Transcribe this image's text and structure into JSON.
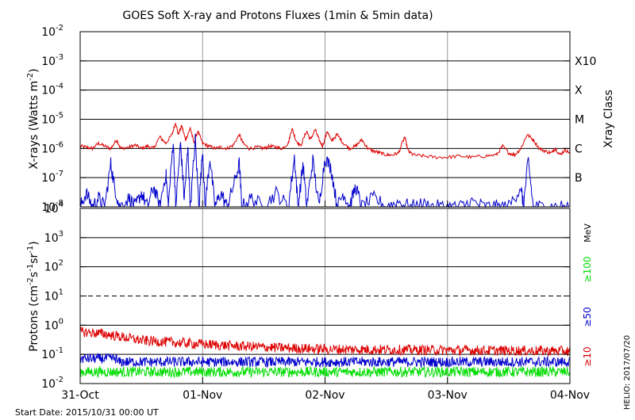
{
  "chart_data": [
    {
      "type": "line",
      "title": "GOES Soft X-ray and Protons Fluxes   (1min & 5min data)",
      "ylabel_base": "X-rays (Watts m",
      "ylabel_exp": "-2",
      "ylabel_end": ")",
      "y_scale": "log",
      "ylim": [
        1e-08,
        0.01
      ],
      "y_ticks": [
        {
          "base": "10",
          "exp": "-8"
        },
        {
          "base": "10",
          "exp": "-7"
        },
        {
          "base": "10",
          "exp": "-6"
        },
        {
          "base": "10",
          "exp": "-5"
        },
        {
          "base": "10",
          "exp": "-4"
        },
        {
          "base": "10",
          "exp": "-3"
        },
        {
          "base": "10",
          "exp": "-2"
        }
      ],
      "right_axis_label": "Xray Class",
      "classes": [
        {
          "label": "B",
          "level": 1e-07
        },
        {
          "label": "C",
          "level": 1e-06
        },
        {
          "label": "M",
          "level": 1e-05
        },
        {
          "label": "X",
          "level": 0.0001
        },
        {
          "label": "X10",
          "level": 0.001
        }
      ],
      "series": [
        {
          "color": "#dd0000",
          "points": [
            [
              0.0,
              1.2e-06
            ],
            [
              0.05,
              1.1e-06
            ],
            [
              0.1,
              1e-06
            ],
            [
              0.15,
              1.5e-06
            ],
            [
              0.2,
              1.2e-06
            ],
            [
              0.25,
              1e-06
            ],
            [
              0.3,
              2e-06
            ],
            [
              0.33,
              1e-06
            ],
            [
              0.4,
              1.1e-06
            ],
            [
              0.45,
              1.3e-06
            ],
            [
              0.5,
              1e-06
            ],
            [
              0.55,
              1.2e-06
            ],
            [
              0.6,
              1e-06
            ],
            [
              0.65,
              2.5e-06
            ],
            [
              0.7,
              1.5e-06
            ],
            [
              0.75,
              3e-06
            ],
            [
              0.78,
              8e-06
            ],
            [
              0.8,
              3e-06
            ],
            [
              0.83,
              6e-06
            ],
            [
              0.86,
              2e-06
            ],
            [
              0.9,
              5e-06
            ],
            [
              0.93,
              1.5e-06
            ],
            [
              0.96,
              4e-06
            ],
            [
              1.0,
              1.5e-06
            ],
            [
              1.05,
              1.2e-06
            ],
            [
              1.1,
              1e-06
            ],
            [
              1.15,
              1.1e-06
            ],
            [
              1.2,
              1e-06
            ],
            [
              1.25,
              1.3e-06
            ],
            [
              1.3,
              3e-06
            ],
            [
              1.33,
              1.5e-06
            ],
            [
              1.38,
              1e-06
            ],
            [
              1.45,
              1.1e-06
            ],
            [
              1.5,
              1e-06
            ],
            [
              1.55,
              1.2e-06
            ],
            [
              1.6,
              1.1e-06
            ],
            [
              1.65,
              1e-06
            ],
            [
              1.7,
              1.5e-06
            ],
            [
              1.73,
              5e-06
            ],
            [
              1.76,
              2e-06
            ],
            [
              1.8,
              1.2e-06
            ],
            [
              1.85,
              4e-06
            ],
            [
              1.88,
              2e-06
            ],
            [
              1.92,
              4.5e-06
            ],
            [
              1.95,
              2e-06
            ],
            [
              1.98,
              1.2e-06
            ],
            [
              2.02,
              4e-06
            ],
            [
              2.05,
              1.8e-06
            ],
            [
              2.1,
              3e-06
            ],
            [
              2.15,
              1.5e-06
            ],
            [
              2.2,
              1e-06
            ],
            [
              2.25,
              1.2e-06
            ],
            [
              2.3,
              2e-06
            ],
            [
              2.35,
              1e-06
            ],
            [
              2.4,
              8e-07
            ],
            [
              2.45,
              7e-07
            ],
            [
              2.5,
              6e-07
            ],
            [
              2.55,
              6e-07
            ],
            [
              2.6,
              7e-07
            ],
            [
              2.65,
              2.5e-06
            ],
            [
              2.68,
              8e-07
            ],
            [
              2.72,
              6e-07
            ],
            [
              2.8,
              5.5e-07
            ],
            [
              2.9,
              5e-07
            ],
            [
              3.0,
              5e-07
            ],
            [
              3.1,
              5.5e-07
            ],
            [
              3.2,
              5e-07
            ],
            [
              3.3,
              5.5e-07
            ],
            [
              3.4,
              6e-07
            ],
            [
              3.45,
              1.2e-06
            ],
            [
              3.5,
              7e-07
            ],
            [
              3.55,
              6e-07
            ],
            [
              3.6,
              1e-06
            ],
            [
              3.65,
              3e-06
            ],
            [
              3.7,
              2e-06
            ],
            [
              3.75,
              1e-06
            ],
            [
              3.8,
              8e-07
            ],
            [
              3.85,
              7e-07
            ],
            [
              3.88,
              1e-06
            ],
            [
              3.92,
              6e-07
            ],
            [
              3.96,
              9e-07
            ],
            [
              4.0,
              7e-07
            ]
          ]
        },
        {
          "color": "#0000cc",
          "points": [
            [
              0.0,
              1e-08
            ],
            [
              0.05,
              3e-08
            ],
            [
              0.1,
              1e-08
            ],
            [
              0.15,
              2e-08
            ],
            [
              0.2,
              1e-08
            ],
            [
              0.25,
              3e-07
            ],
            [
              0.28,
              5e-08
            ],
            [
              0.32,
              1e-08
            ],
            [
              0.4,
              2e-08
            ],
            [
              0.45,
              1e-08
            ],
            [
              0.5,
              3e-08
            ],
            [
              0.55,
              1e-08
            ],
            [
              0.6,
              5e-08
            ],
            [
              0.65,
              1e-08
            ],
            [
              0.7,
              1.5e-07
            ],
            [
              0.72,
              1e-08
            ],
            [
              0.76,
              2e-06
            ],
            [
              0.78,
              1e-08
            ],
            [
              0.82,
              1.5e-06
            ],
            [
              0.85,
              2e-08
            ],
            [
              0.88,
              1e-06
            ],
            [
              0.9,
              1e-08
            ],
            [
              0.94,
              2e-06
            ],
            [
              0.97,
              1e-08
            ],
            [
              1.0,
              1e-06
            ],
            [
              1.02,
              1e-08
            ],
            [
              1.06,
              5e-07
            ],
            [
              1.1,
              1e-08
            ],
            [
              1.15,
              3e-08
            ],
            [
              1.2,
              1e-08
            ],
            [
              1.25,
              5e-08
            ],
            [
              1.3,
              3e-07
            ],
            [
              1.32,
              1e-08
            ],
            [
              1.4,
              2e-08
            ],
            [
              1.5,
              1e-08
            ],
            [
              1.6,
              3e-08
            ],
            [
              1.7,
              1e-08
            ],
            [
              1.75,
              5e-07
            ],
            [
              1.78,
              1e-08
            ],
            [
              1.82,
              3e-07
            ],
            [
              1.85,
              1e-08
            ],
            [
              1.9,
              4e-07
            ],
            [
              1.95,
              1e-08
            ],
            [
              2.0,
              5e-07
            ],
            [
              2.05,
              2e-07
            ],
            [
              2.1,
              1e-08
            ],
            [
              2.15,
              3e-08
            ],
            [
              2.2,
              1e-08
            ],
            [
              2.25,
              5e-08
            ],
            [
              2.3,
              1e-08
            ],
            [
              2.4,
              2e-08
            ],
            [
              2.5,
              1e-08
            ],
            [
              2.6,
              1.5e-08
            ],
            [
              2.7,
              1e-08
            ],
            [
              2.8,
              1.2e-08
            ],
            [
              2.9,
              1e-08
            ],
            [
              3.0,
              1e-08
            ],
            [
              3.1,
              1e-08
            ],
            [
              3.2,
              1.5e-08
            ],
            [
              3.3,
              1e-08
            ],
            [
              3.4,
              1e-08
            ],
            [
              3.5,
              1e-08
            ],
            [
              3.6,
              5e-08
            ],
            [
              3.62,
              1e-08
            ],
            [
              3.66,
              4e-07
            ],
            [
              3.7,
              1e-08
            ],
            [
              3.8,
              1e-08
            ],
            [
              3.9,
              1e-08
            ],
            [
              4.0,
              1e-08
            ]
          ]
        }
      ]
    },
    {
      "type": "line",
      "ylabel_base": "Protons (cm",
      "ylabel_exp1": "-2",
      "ylabel_mid": "s",
      "ylabel_exp2": "-1",
      "ylabel_mid2": "sr",
      "ylabel_exp3": "-1",
      "ylabel_end": ")",
      "y_scale": "log",
      "ylim": [
        0.01,
        10000.0
      ],
      "y_ticks": [
        {
          "base": "10",
          "exp": "-2"
        },
        {
          "base": "10",
          "exp": "-1"
        },
        {
          "base": "10",
          "exp": "0"
        },
        {
          "base": "10",
          "exp": "1"
        },
        {
          "base": "10",
          "exp": "2"
        },
        {
          "base": "10",
          "exp": "3"
        },
        {
          "base": "10",
          "exp": "4"
        }
      ],
      "unit_label": "MeV",
      "threshold_line": 10,
      "series": [
        {
          "name": "≥100",
          "color": "#00dd00",
          "level": 0.025,
          "spread": 0.35
        },
        {
          "name": "≥50",
          "color": "#0000cc",
          "level": 0.055,
          "spread": 0.35
        },
        {
          "name": "≥10",
          "color": "#dd0000",
          "level": 0.13,
          "spread": 0.35
        }
      ],
      "red_initial": [
        [
          0.0,
          0.6
        ],
        [
          0.2,
          0.5
        ],
        [
          0.5,
          0.3
        ],
        [
          0.8,
          0.25
        ],
        [
          1.2,
          0.2
        ],
        [
          1.6,
          0.17
        ],
        [
          2.0,
          0.15
        ],
        [
          4.0,
          0.13
        ]
      ]
    }
  ],
  "x_axis": {
    "xlim": [
      0,
      4
    ],
    "tick_labels": [
      "31-Oct",
      "01-Nov",
      "02-Nov",
      "03-Nov",
      "04-Nov"
    ],
    "tick_values": [
      0,
      1,
      2,
      3,
      4
    ]
  },
  "footer": {
    "start_date": "Start Date: 2015/10/31 00:00 UT",
    "credit": "HELIO: 2017/07/20"
  }
}
